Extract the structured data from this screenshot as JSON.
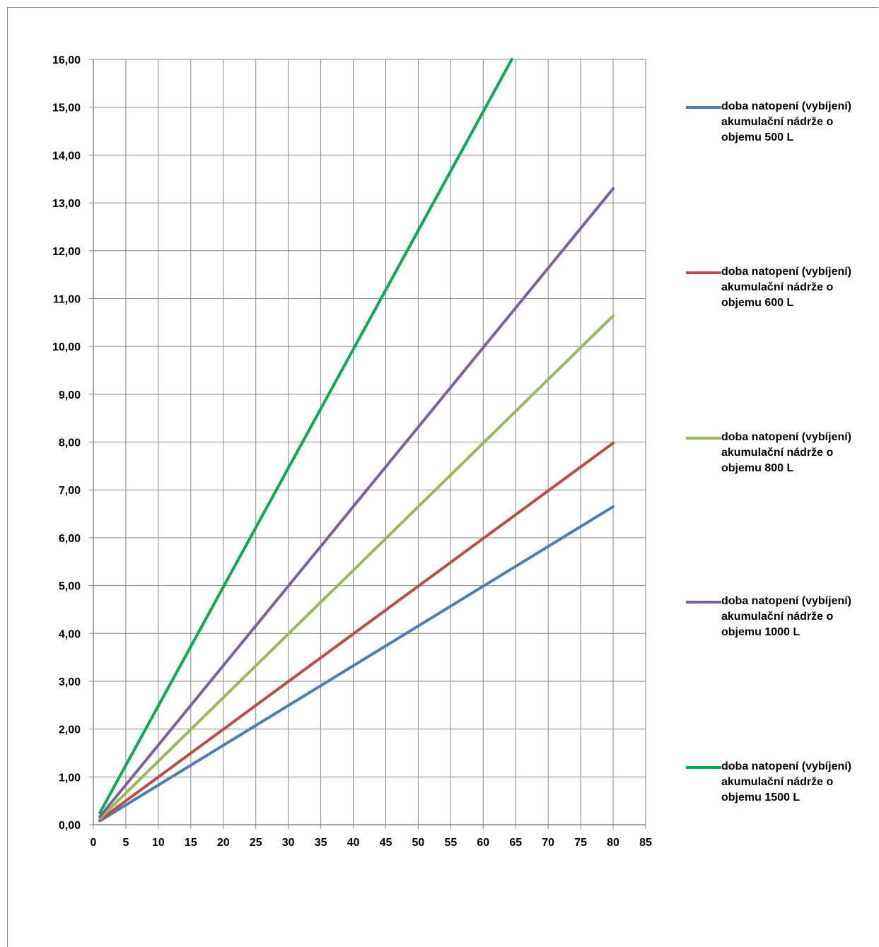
{
  "chart_data": {
    "type": "line",
    "xlim": [
      0,
      85
    ],
    "ylim": [
      0,
      16
    ],
    "x_ticks": [
      "0",
      "5",
      "10",
      "15",
      "20",
      "25",
      "30",
      "35",
      "40",
      "45",
      "50",
      "55",
      "60",
      "65",
      "70",
      "75",
      "80",
      "85"
    ],
    "y_ticks": [
      "0,00",
      "1,00",
      "2,00",
      "3,00",
      "4,00",
      "5,00",
      "6,00",
      "7,00",
      "8,00",
      "9,00",
      "10,00",
      "11,00",
      "12,00",
      "13,00",
      "14,00",
      "15,00",
      "16,00"
    ],
    "grid": true,
    "legend_position": "right",
    "series": [
      {
        "name": "doba natopení (vybíjení)\nakumulační nádrže o\nobjemu 500 L",
        "color": "#4a7ebb",
        "x": [
          1,
          80
        ],
        "y": [
          0.08,
          6.65
        ]
      },
      {
        "name": "doba natopení (vybíjení)\nakumulační nádrže o\nobjemu 600 L",
        "color": "#be4b48",
        "x": [
          1,
          80
        ],
        "y": [
          0.1,
          7.98
        ]
      },
      {
        "name": "doba natopení (vybíjení)\nakumulační nádrže o\nobjemu 800 L",
        "color": "#98b954",
        "x": [
          1,
          80
        ],
        "y": [
          0.13,
          10.64
        ]
      },
      {
        "name": "doba natopení (vybíjení)\nakumulační nádrže o\nobjemu 1000 L",
        "color": "#7d60a0",
        "x": [
          1,
          80
        ],
        "y": [
          0.17,
          13.3
        ]
      },
      {
        "name": "doba natopení (vybíjení)\nakumulační nádrže o\nobjemu 1500 L",
        "color": "#00b050",
        "x": [
          1,
          64.4
        ],
        "y": [
          0.25,
          16.0
        ]
      }
    ]
  }
}
